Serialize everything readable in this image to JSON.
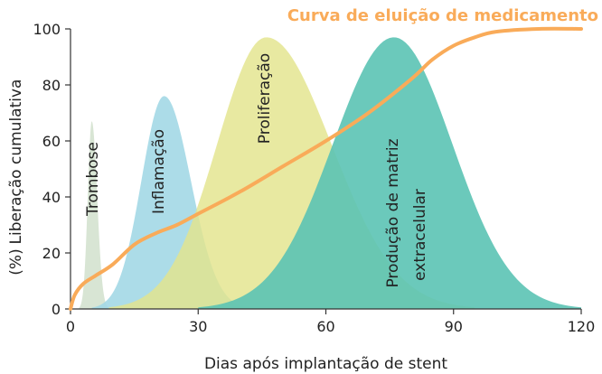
{
  "chart_data": {
    "type": "area",
    "title": "",
    "xlabel": "Dias após implantação de stent",
    "ylabel_lines": [
      "Liberação cumulativa",
      "(%)"
    ],
    "xlim": [
      0,
      120
    ],
    "ylim": [
      0,
      100
    ],
    "x_ticks": [
      0,
      30,
      60,
      90,
      120
    ],
    "y_ticks": [
      0,
      20,
      40,
      60,
      80,
      100
    ],
    "grid": false,
    "regions": [
      {
        "name": "Trombose",
        "peak_x": 5,
        "peak_y": 67,
        "start_x": 2,
        "end_x": 9,
        "color": "#d4e2cf"
      },
      {
        "name": "Inflamação",
        "peak_x": 22,
        "peak_y": 76,
        "start_x": 5,
        "end_x": 42,
        "color": "#a3d8e6"
      },
      {
        "name": "Proliferação",
        "peak_x": 46,
        "peak_y": 97,
        "start_x": 9,
        "end_x": 95,
        "color": "#e3e48c"
      },
      {
        "name_lines": [
          "Produção de matriz",
          "extracelular"
        ],
        "peak_x": 76,
        "peak_y": 97,
        "start_x": 30,
        "end_x": 120,
        "color": "#5bc3b4"
      }
    ],
    "series": [
      {
        "name": "Curva de eluição de medicamento",
        "color": "#f9ab59",
        "x": [
          0,
          1,
          3,
          6,
          10,
          15,
          20,
          25,
          30,
          40,
          50,
          60,
          70,
          80,
          85,
          90,
          95,
          100,
          110,
          120
        ],
        "y": [
          0,
          5,
          9,
          12,
          16,
          23,
          27,
          30,
          34,
          42,
          51,
          60,
          70,
          82,
          89,
          94,
          97,
          99,
          100,
          100
        ]
      }
    ]
  }
}
